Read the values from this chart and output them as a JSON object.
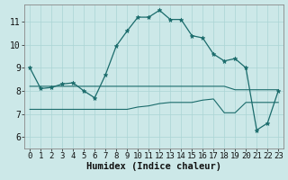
{
  "xlabel": "Humidex (Indice chaleur)",
  "background_color": "#cce8e8",
  "line_color": "#1a6b6b",
  "xlim": [
    -0.5,
    23.5
  ],
  "ylim": [
    5.5,
    11.75
  ],
  "yticks": [
    6,
    7,
    8,
    9,
    10,
    11
  ],
  "xticks": [
    0,
    1,
    2,
    3,
    4,
    5,
    6,
    7,
    8,
    9,
    10,
    11,
    12,
    13,
    14,
    15,
    16,
    17,
    18,
    19,
    20,
    21,
    22,
    23
  ],
  "main_line": [
    9.0,
    8.1,
    8.15,
    8.3,
    8.35,
    8.0,
    7.7,
    8.7,
    9.95,
    10.6,
    11.2,
    11.2,
    11.5,
    11.1,
    11.1,
    10.4,
    10.3,
    9.6,
    9.3,
    9.4,
    9.0,
    6.3,
    6.6,
    8.0
  ],
  "flat_line1": [
    7.2,
    7.2,
    7.2,
    7.2,
    7.2,
    7.2,
    7.2,
    7.2,
    7.2,
    7.2,
    7.3,
    7.35,
    7.45,
    7.5,
    7.5,
    7.5,
    7.6,
    7.65,
    7.05,
    7.05,
    7.5,
    7.5,
    7.5,
    7.5
  ],
  "flat_line2": [
    8.2,
    8.2,
    8.2,
    8.2,
    8.2,
    8.2,
    8.2,
    8.2,
    8.2,
    8.2,
    8.2,
    8.2,
    8.2,
    8.2,
    8.2,
    8.2,
    8.2,
    8.2,
    8.2,
    8.05,
    8.05,
    8.05,
    8.05,
    8.05
  ],
  "grid_color": "#aad4d4",
  "tick_fontsize": 6.5,
  "xlabel_fontsize": 7.5
}
